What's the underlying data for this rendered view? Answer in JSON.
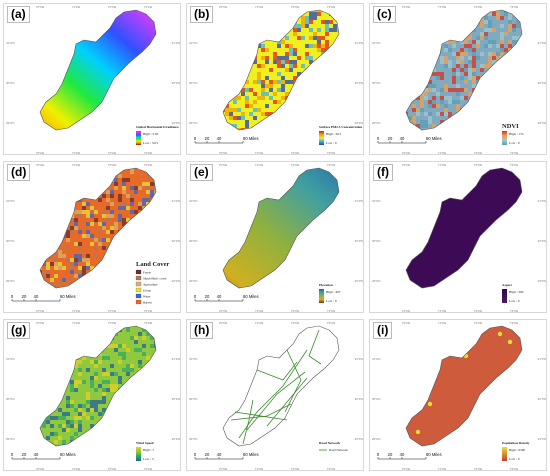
{
  "panels": [
    {
      "id": "a",
      "label": "(a)",
      "legend": {
        "type": "gradient",
        "title": "Global Horizontal Irradiance",
        "high": "High : 5.95",
        "low": "Low : 5.03",
        "stops": [
          "#ff2b9a",
          "#c040ff",
          "#3050ff",
          "#00d0ff",
          "#20e840",
          "#f0f000",
          "#ff8c00",
          "#8a1a00"
        ]
      },
      "fill": "ghi",
      "scale": false
    },
    {
      "id": "b",
      "label": "(b)",
      "legend": {
        "type": "gradient",
        "title": "Surface PM2.5 Concentration",
        "high": "High : 30.5",
        "low": "Low : 0",
        "stops": [
          "#e02020",
          "#f0a000",
          "#f0f020",
          "#40b0f0",
          "#2040c0"
        ]
      },
      "fill": "pm",
      "scale": true
    },
    {
      "id": "c",
      "label": "(c)",
      "legend": {
        "type": "gradient",
        "title": "NDVI",
        "big_title": true,
        "high": "High : 174",
        "low": "Low : 0",
        "stops": [
          "#e03020",
          "#f0a050",
          "#a0c8d0",
          "#5c9cb8"
        ]
      },
      "fill": "ndvi",
      "scale": true
    },
    {
      "id": "d",
      "label": "(d)",
      "legend": {
        "type": "classes",
        "title": "Land Cover",
        "big_title": true,
        "items": [
          {
            "name": "Forest",
            "color": "#6d2b2b"
          },
          {
            "name": "Shrub/Herb. cover",
            "color": "#b07a5a"
          },
          {
            "name": "Agriculture",
            "color": "#d9b36b"
          },
          {
            "name": "Urban",
            "color": "#e8e03a"
          },
          {
            "name": "Water",
            "color": "#3a68c8"
          },
          {
            "name": "Barren",
            "color": "#e86a28"
          }
        ]
      },
      "fill": "landcover",
      "scale": true
    },
    {
      "id": "e",
      "label": "(e)",
      "legend": {
        "type": "gradient",
        "title": "Elevation",
        "high": "High : 497",
        "low": "Low : 0",
        "stops": [
          "#2060b0",
          "#40a0a0",
          "#90b040",
          "#d0b020",
          "#7a2a10"
        ]
      },
      "fill": "elev",
      "scale": true
    },
    {
      "id": "f",
      "label": "(f)",
      "legend": {
        "type": "gradient",
        "title": "Aspect",
        "high": "High : 360",
        "low": "Low : 0",
        "stops": [
          "#2a0a4a",
          "#4a1a6a"
        ]
      },
      "fill": "aspect",
      "scale": false
    },
    {
      "id": "g",
      "label": "(g)",
      "legend": {
        "type": "gradient",
        "title": "Wind Speed",
        "high": "High : 7",
        "low": "Low : 3",
        "stops": [
          "#e8d020",
          "#90c840",
          "#30a860",
          "#2060a0"
        ]
      },
      "fill": "wind",
      "scale": true
    },
    {
      "id": "h",
      "label": "(h)",
      "legend": {
        "type": "line",
        "title": "Road Network",
        "item": "Road Network",
        "color": "#3a8a2a"
      },
      "fill": "road",
      "scale": true
    },
    {
      "id": "i",
      "label": "(i)",
      "legend": {
        "type": "gradient",
        "title": "Population Density",
        "high": "High : 9590",
        "low": "Low : 0",
        "stops": [
          "#e8e030",
          "#c04030"
        ]
      },
      "fill": "pop",
      "scale": true
    }
  ],
  "scalebar": {
    "ticks": [
      "0",
      "20",
      "40",
      "80 Miles"
    ]
  },
  "axis_ticks": {
    "lon": [
      "70°0'E",
      "71°0'E",
      "72°0'E",
      "73°0'E"
    ],
    "lat": [
      "31°0'N",
      "30°0'N",
      "29°0'N"
    ]
  },
  "colors": {
    "border": "#d8d8d8",
    "outline": "#555555",
    "road": "#3a8a2a",
    "aspect": "#3d0b55",
    "pop": "#cd5b3c"
  }
}
